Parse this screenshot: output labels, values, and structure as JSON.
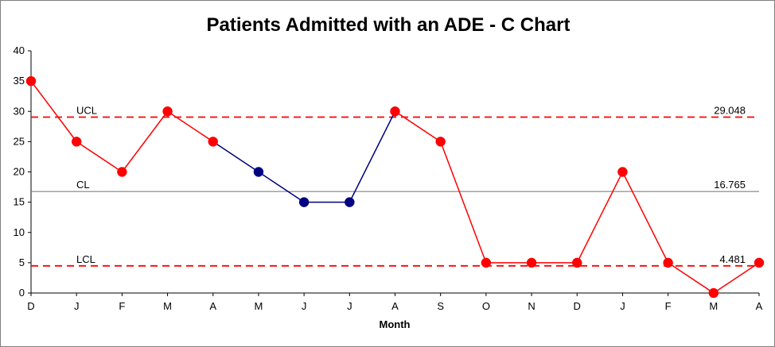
{
  "chart_data": {
    "type": "line",
    "title": "Patients Admitted with an ADE - C Chart",
    "xlabel": "Month",
    "ylabel": "",
    "ylim": [
      0,
      40
    ],
    "yticks": [
      0,
      5,
      10,
      15,
      20,
      25,
      30,
      35,
      40
    ],
    "categories": [
      "D",
      "J",
      "F",
      "M",
      "A",
      "M",
      "J",
      "J",
      "A",
      "S",
      "O",
      "N",
      "D",
      "J",
      "F",
      "M",
      "A"
    ],
    "series": [
      {
        "values": [
          35,
          25,
          20,
          30,
          25,
          20,
          15,
          15,
          30,
          25,
          5,
          5,
          5,
          20,
          5,
          0,
          5
        ],
        "point_colors": [
          "#ff0000",
          "#ff0000",
          "#ff0000",
          "#ff0000",
          "#ff0000",
          "#000080",
          "#000080",
          "#000080",
          "#ff0000",
          "#ff0000",
          "#ff0000",
          "#ff0000",
          "#ff0000",
          "#ff0000",
          "#ff0000",
          "#ff0000",
          "#ff0000"
        ]
      }
    ],
    "control_limits": {
      "ucl": {
        "label": "UCL",
        "value": 29.048,
        "value_label": "29.048",
        "color": "#ff0000",
        "style": "dashed"
      },
      "cl": {
        "label": "CL",
        "value": 16.765,
        "value_label": "16.765",
        "color": "#808080",
        "style": "solid"
      },
      "lcl": {
        "label": "LCL",
        "value": 4.481,
        "value_label": "4.481",
        "color": "#ff0000",
        "style": "dashed"
      }
    },
    "grid": false,
    "legend": "none"
  }
}
